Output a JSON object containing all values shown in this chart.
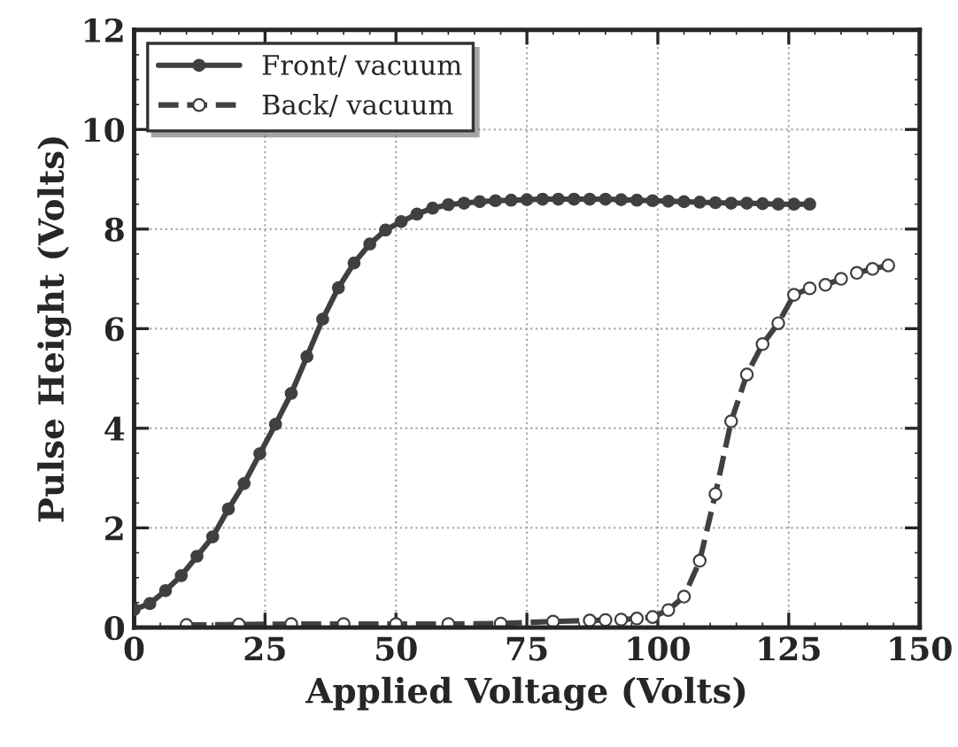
{
  "chart_data": {
    "type": "line",
    "xlabel": "Applied Voltage (Volts)",
    "ylabel": "Pulse Height (Volts)",
    "xlim": [
      0,
      150
    ],
    "xticks": [
      0,
      25,
      50,
      75,
      100,
      125,
      150
    ],
    "ylim": [
      0,
      12
    ],
    "yticks": [
      0,
      2,
      4,
      6,
      8,
      10,
      12
    ],
    "grid": true,
    "legend": "top left",
    "series": [
      {
        "name": "Front/ vacuum",
        "color": "#404040",
        "marker": "circle",
        "line_style": "solid",
        "x": [
          0,
          3,
          6,
          9,
          12,
          15,
          18,
          21,
          24,
          27,
          30,
          33,
          36,
          39,
          42,
          45,
          48,
          51,
          54,
          57,
          60,
          63,
          66,
          69,
          72,
          75,
          78,
          81,
          84,
          87,
          90,
          93,
          96,
          99,
          102,
          105,
          108,
          111,
          114,
          117,
          120,
          123,
          126,
          129
        ],
        "values": [
          0.36,
          0.48,
          0.74,
          1.04,
          1.43,
          1.82,
          2.38,
          2.89,
          3.49,
          4.08,
          4.7,
          5.44,
          6.19,
          6.82,
          7.32,
          7.7,
          7.98,
          8.15,
          8.3,
          8.42,
          8.49,
          8.52,
          8.55,
          8.57,
          8.58,
          8.59,
          8.6,
          8.6,
          8.6,
          8.6,
          8.6,
          8.59,
          8.58,
          8.57,
          8.56,
          8.55,
          8.54,
          8.53,
          8.52,
          8.52,
          8.51,
          8.5,
          8.5,
          8.5
        ]
      },
      {
        "name": "Back/ vacuum",
        "color": "#404040",
        "marker": "circle",
        "line_style": "dashed",
        "x": [
          10,
          20,
          30,
          40,
          50,
          60,
          70,
          80,
          87,
          90,
          93,
          96,
          99,
          102,
          105,
          108,
          111,
          114,
          117,
          120,
          123,
          126,
          129,
          132,
          135,
          138,
          141,
          144
        ],
        "values": [
          0.05,
          0.06,
          0.07,
          0.07,
          0.07,
          0.07,
          0.08,
          0.12,
          0.14,
          0.15,
          0.16,
          0.18,
          0.21,
          0.35,
          0.62,
          1.34,
          2.68,
          4.14,
          5.08,
          5.69,
          6.11,
          6.68,
          6.81,
          6.88,
          7.0,
          7.12,
          7.2,
          7.27
        ]
      }
    ]
  }
}
